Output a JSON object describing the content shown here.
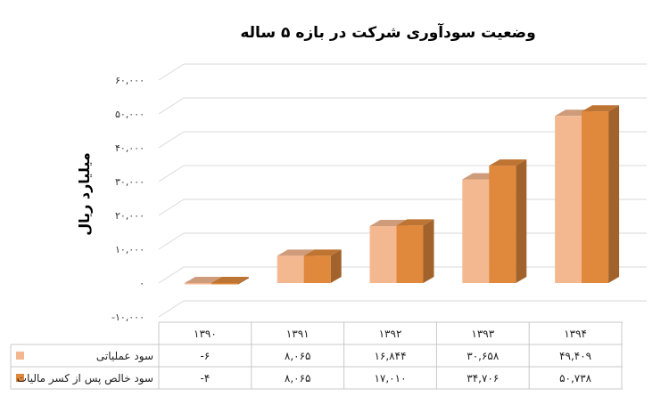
{
  "chart_data": {
    "type": "bar",
    "title": "وضعیت سودآوری شرکت در بازه ۵ ساله",
    "ylabel": "میلیارد ریال",
    "xlabel": "",
    "ylim": [
      -10000,
      60000
    ],
    "ytick_values": [
      -10000,
      0,
      10000,
      20000,
      30000,
      40000,
      50000,
      60000
    ],
    "ytick_labels": [
      "-۱۰,۰۰۰",
      "۰",
      "۱۰,۰۰۰",
      "۲۰,۰۰۰",
      "۳۰,۰۰۰",
      "۴۰,۰۰۰",
      "۵۰,۰۰۰",
      "۶۰,۰۰۰"
    ],
    "grid": true,
    "legend": "data-table",
    "categories": [
      "۱۳۹۰",
      "۱۳۹۱",
      "۱۳۹۲",
      "۱۳۹۳",
      "۱۳۹۴"
    ],
    "series": [
      {
        "name": "سود عملیاتی",
        "color": "#f4b891",
        "values": [
          -6,
          8065,
          16844,
          30658,
          49409
        ],
        "labels": [
          "-۶",
          "۸,۰۶۵",
          "۱۶,۸۴۴",
          "۳۰,۶۵۸",
          "۴۹,۴۰۹"
        ]
      },
      {
        "name": "سود خالص پس از کسر مالیات",
        "color": "#e0883c",
        "values": [
          -4,
          8065,
          17010,
          34706,
          50738
        ],
        "labels": [
          "-۴",
          "۸,۰۶۵",
          "۱۷,۰۱۰",
          "۳۴,۷۰۶",
          "۵۰,۷۳۸"
        ]
      }
    ]
  }
}
